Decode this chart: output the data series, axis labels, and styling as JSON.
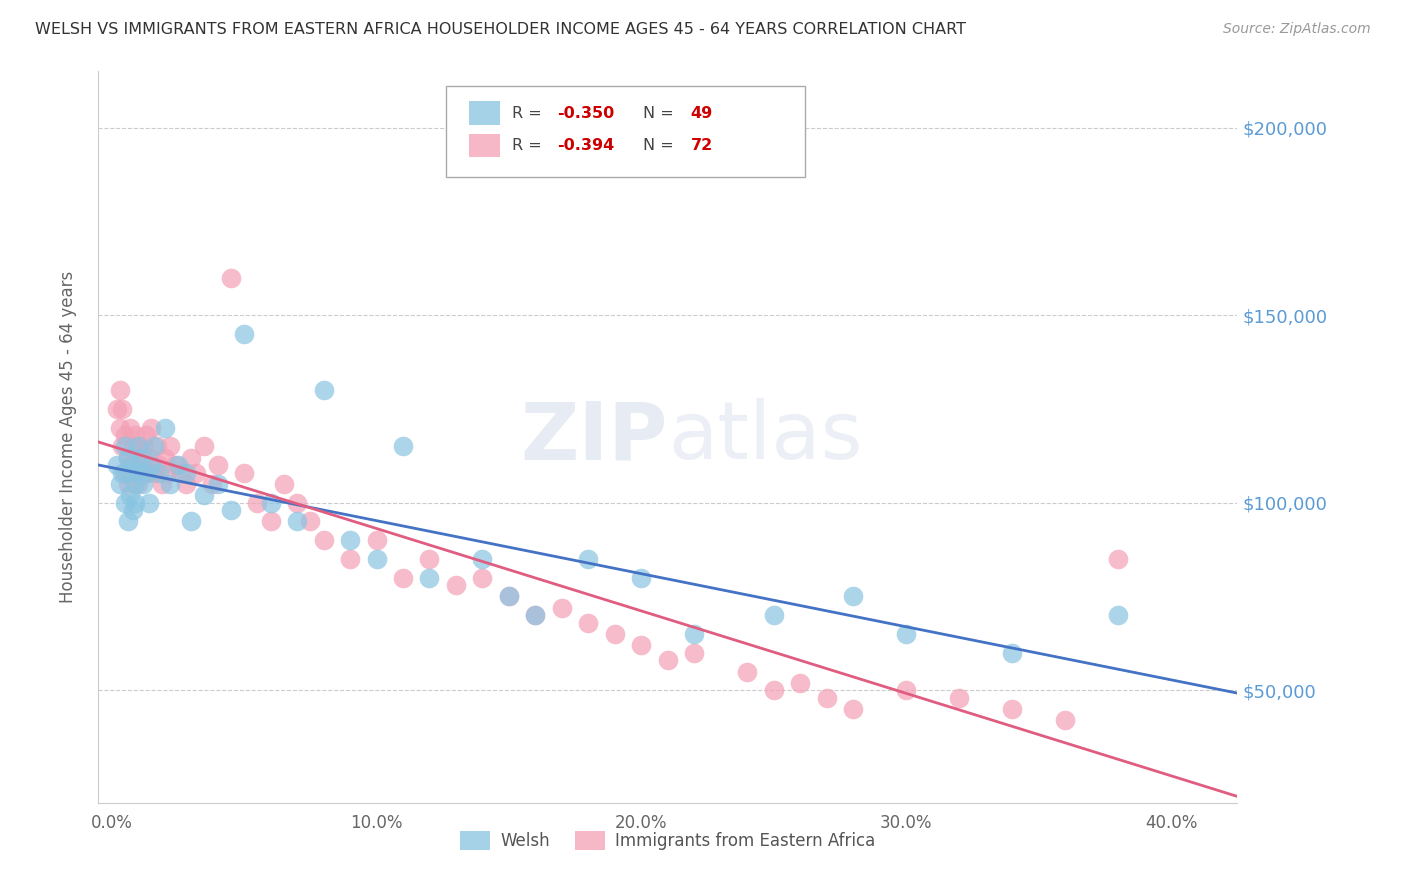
{
  "title": "WELSH VS IMMIGRANTS FROM EASTERN AFRICA HOUSEHOLDER INCOME AGES 45 - 64 YEARS CORRELATION CHART",
  "source": "Source: ZipAtlas.com",
  "ylabel": "Householder Income Ages 45 - 64 years",
  "xlabel_ticks": [
    "0.0%",
    "10.0%",
    "20.0%",
    "30.0%",
    "40.0%"
  ],
  "xlabel_tick_vals": [
    0.0,
    0.1,
    0.2,
    0.3,
    0.4
  ],
  "ylabel_ticks": [
    "$50,000",
    "$100,000",
    "$150,000",
    "$200,000"
  ],
  "ylabel_tick_vals": [
    50000,
    100000,
    150000,
    200000
  ],
  "xlim": [
    -0.005,
    0.425
  ],
  "ylim": [
    20000,
    215000
  ],
  "watermark": "ZIPatlas",
  "welsh_color": "#89c4e1",
  "eastern_color": "#f4a0b5",
  "welsh_line_color": "#4472c4",
  "eastern_line_color": "#e05c80",
  "background_color": "#ffffff",
  "grid_color": "#cccccc",
  "right_tick_color": "#5b9bd5",
  "welsh_scatter_x": [
    0.002,
    0.003,
    0.004,
    0.005,
    0.005,
    0.006,
    0.006,
    0.007,
    0.007,
    0.008,
    0.008,
    0.009,
    0.009,
    0.01,
    0.01,
    0.011,
    0.012,
    0.013,
    0.014,
    0.015,
    0.016,
    0.018,
    0.02,
    0.022,
    0.025,
    0.028,
    0.03,
    0.035,
    0.04,
    0.045,
    0.05,
    0.06,
    0.07,
    0.08,
    0.09,
    0.1,
    0.11,
    0.12,
    0.14,
    0.15,
    0.16,
    0.18,
    0.2,
    0.22,
    0.25,
    0.28,
    0.3,
    0.34,
    0.38
  ],
  "welsh_scatter_y": [
    110000,
    105000,
    108000,
    115000,
    100000,
    112000,
    95000,
    108000,
    102000,
    110000,
    98000,
    105000,
    100000,
    108000,
    115000,
    112000,
    105000,
    108000,
    100000,
    110000,
    115000,
    108000,
    120000,
    105000,
    110000,
    108000,
    95000,
    102000,
    105000,
    98000,
    145000,
    100000,
    95000,
    130000,
    90000,
    85000,
    115000,
    80000,
    85000,
    75000,
    70000,
    85000,
    80000,
    65000,
    70000,
    75000,
    65000,
    60000,
    70000
  ],
  "eastern_scatter_x": [
    0.002,
    0.003,
    0.003,
    0.004,
    0.004,
    0.005,
    0.005,
    0.006,
    0.006,
    0.007,
    0.007,
    0.008,
    0.008,
    0.009,
    0.009,
    0.01,
    0.01,
    0.011,
    0.011,
    0.012,
    0.012,
    0.013,
    0.013,
    0.014,
    0.015,
    0.016,
    0.017,
    0.018,
    0.019,
    0.02,
    0.021,
    0.022,
    0.024,
    0.026,
    0.028,
    0.03,
    0.032,
    0.035,
    0.038,
    0.04,
    0.045,
    0.05,
    0.055,
    0.06,
    0.065,
    0.07,
    0.075,
    0.08,
    0.09,
    0.1,
    0.11,
    0.12,
    0.13,
    0.14,
    0.15,
    0.16,
    0.17,
    0.18,
    0.19,
    0.2,
    0.21,
    0.22,
    0.24,
    0.25,
    0.26,
    0.27,
    0.28,
    0.3,
    0.32,
    0.34,
    0.36,
    0.38
  ],
  "eastern_scatter_y": [
    125000,
    130000,
    120000,
    115000,
    125000,
    108000,
    118000,
    112000,
    105000,
    120000,
    110000,
    115000,
    108000,
    112000,
    118000,
    105000,
    115000,
    110000,
    108000,
    112000,
    115000,
    108000,
    118000,
    112000,
    120000,
    108000,
    115000,
    110000,
    105000,
    112000,
    108000,
    115000,
    110000,
    108000,
    105000,
    112000,
    108000,
    115000,
    105000,
    110000,
    160000,
    108000,
    100000,
    95000,
    105000,
    100000,
    95000,
    90000,
    85000,
    90000,
    80000,
    85000,
    78000,
    80000,
    75000,
    70000,
    72000,
    68000,
    65000,
    62000,
    58000,
    60000,
    55000,
    50000,
    52000,
    48000,
    45000,
    50000,
    48000,
    45000,
    42000,
    85000
  ],
  "legend_welsh_R": "-0.350",
  "legend_welsh_N": "49",
  "legend_eastern_R": "-0.394",
  "legend_eastern_N": "72"
}
